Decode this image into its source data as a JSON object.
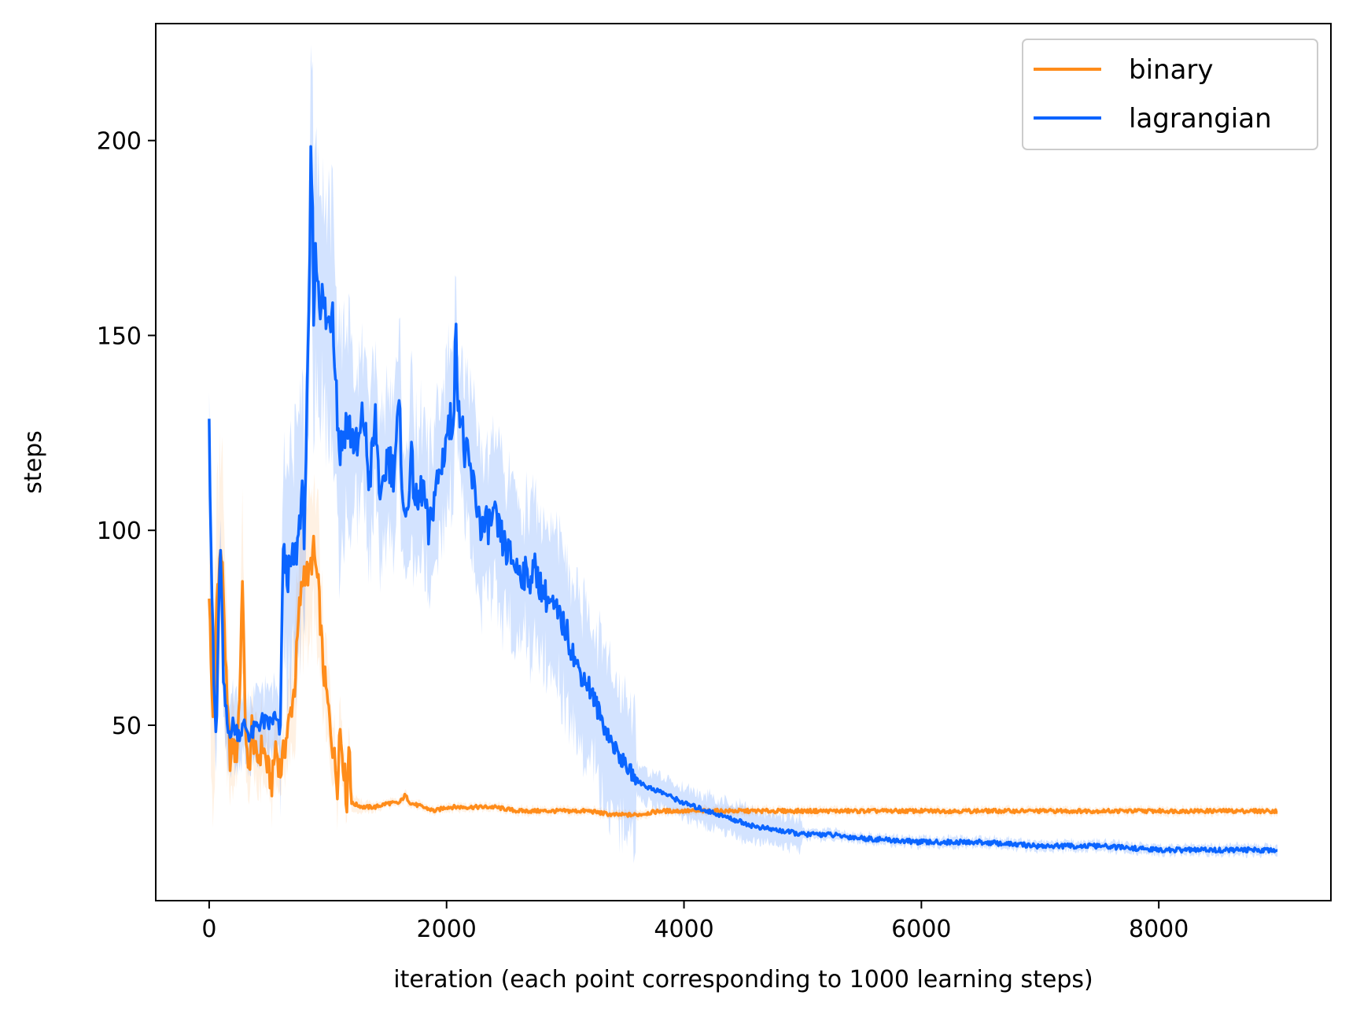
{
  "chart_data": {
    "type": "line",
    "xlabel": "iteration (each point corresponding to 1000 learning steps)",
    "ylabel": "steps",
    "xlim": [
      -450,
      9450
    ],
    "ylim": [
      5,
      230
    ],
    "xticks": [
      0,
      2000,
      4000,
      6000,
      8000
    ],
    "yticks": [
      50,
      100,
      150,
      200
    ],
    "grid": false,
    "legend": {
      "position": "top-right",
      "entries": [
        "binary",
        "lagrangian"
      ]
    },
    "series": [
      {
        "name": "binary",
        "color": "#ff8c1a",
        "x": [
          0,
          20,
          40,
          60,
          80,
          100,
          120,
          150,
          180,
          200,
          230,
          260,
          280,
          300,
          330,
          360,
          400,
          450,
          500,
          530,
          560,
          600,
          640,
          680,
          720,
          760,
          800,
          840,
          880,
          920,
          960,
          1000,
          1040,
          1080,
          1100,
          1140,
          1160,
          1180,
          1200,
          1300,
          1400,
          1500,
          1600,
          1650,
          1700,
          1800,
          1900,
          2000,
          2200,
          2400,
          2600,
          2800,
          3000,
          3200,
          3400,
          3600,
          3800,
          4000,
          4200,
          4400,
          4600,
          5000,
          5500,
          6000,
          6500,
          7000,
          7500,
          8000,
          8500,
          9000
        ],
        "y": [
          85,
          60,
          50,
          80,
          90,
          95,
          85,
          55,
          40,
          45,
          42,
          60,
          90,
          55,
          35,
          50,
          40,
          45,
          38,
          35,
          45,
          38,
          45,
          52,
          60,
          80,
          90,
          88,
          95,
          85,
          65,
          55,
          45,
          35,
          50,
          38,
          30,
          48,
          30,
          29,
          29,
          30,
          30,
          32,
          30,
          29,
          28,
          29,
          29,
          29,
          28,
          28,
          28,
          28,
          27,
          27,
          28,
          28,
          28,
          28,
          28,
          28,
          28,
          28,
          28,
          28,
          28,
          28,
          28,
          28
        ],
        "band_width": [
          20,
          22,
          24,
          26,
          22,
          28,
          22,
          16,
          12,
          10,
          8,
          14,
          20,
          12,
          8,
          10,
          8,
          8,
          7,
          6,
          8,
          6,
          8,
          10,
          12,
          16,
          18,
          18,
          18,
          16,
          12,
          10,
          8,
          6,
          8,
          5,
          3,
          5,
          2,
          1.5,
          1,
          1,
          1,
          1.5,
          1,
          1,
          1,
          1,
          1,
          1,
          1,
          1,
          1,
          1,
          1,
          1,
          1,
          1,
          1,
          1,
          1,
          1,
          1,
          1,
          1,
          1,
          1,
          1,
          1,
          1
        ]
      },
      {
        "name": "lagrangian",
        "color": "#0a64ff",
        "x": [
          0,
          10,
          20,
          40,
          60,
          80,
          100,
          120,
          160,
          200,
          250,
          300,
          350,
          400,
          450,
          500,
          550,
          600,
          620,
          660,
          700,
          740,
          780,
          800,
          820,
          840,
          860,
          880,
          900,
          940,
          980,
          1000,
          1040,
          1080,
          1100,
          1150,
          1200,
          1250,
          1300,
          1350,
          1400,
          1450,
          1500,
          1550,
          1600,
          1650,
          1700,
          1750,
          1800,
          1850,
          1900,
          1950,
          2000,
          2050,
          2080,
          2100,
          2150,
          2200,
          2300,
          2400,
          2500,
          2600,
          2700,
          2750,
          2800,
          2900,
          3000,
          3100,
          3200,
          3300,
          3400,
          3500,
          3600,
          3700,
          3800,
          4000,
          4200,
          4400,
          4600,
          4800,
          5000,
          5200,
          5500,
          6000,
          6500,
          7000,
          7500,
          8000,
          8500,
          9000
        ],
        "y": [
          135,
          108,
          90,
          60,
          45,
          80,
          95,
          60,
          48,
          50,
          48,
          50,
          47,
          50,
          51,
          50,
          52,
          48,
          95,
          88,
          92,
          95,
          110,
          100,
          125,
          150,
          200,
          160,
          170,
          160,
          155,
          152,
          160,
          130,
          120,
          128,
          125,
          120,
          130,
          112,
          128,
          105,
          120,
          115,
          130,
          100,
          118,
          105,
          112,
          98,
          110,
          115,
          125,
          128,
          148,
          135,
          120,
          115,
          100,
          103,
          95,
          90,
          88,
          90,
          85,
          80,
          75,
          65,
          60,
          52,
          45,
          40,
          36,
          34,
          33,
          30,
          28,
          26,
          24,
          23,
          22,
          22,
          21,
          20,
          20,
          19,
          19,
          18,
          18,
          18
        ]
      }
    ]
  }
}
